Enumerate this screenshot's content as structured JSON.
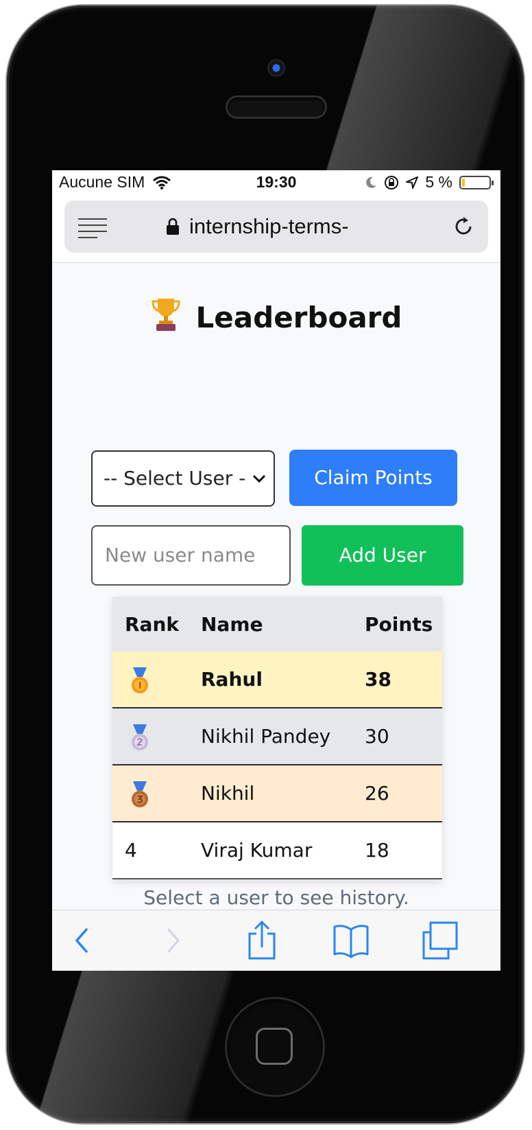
{
  "statusbar": {
    "carrier": "Aucune SIM",
    "time": "19:30",
    "battery": "5 %",
    "battery_level": 0.05
  },
  "browser": {
    "url": "internship-terms-"
  },
  "page": {
    "title": "Leaderboard",
    "select_user": {
      "selected": "-- Select User -"
    },
    "claim_button": "Claim Points",
    "new_user_input": {
      "placeholder": "New user name",
      "value": ""
    },
    "add_button": "Add User",
    "table": {
      "headers": [
        "Rank",
        "Name",
        "Points"
      ],
      "rows": [
        {
          "rank": "",
          "medal": "gold-medal-icon",
          "name": "Rahul",
          "points": "38",
          "bg": "#fff3c2",
          "bold": true
        },
        {
          "rank": "",
          "medal": "silver-medal-icon",
          "name": "Nikhil Pandey",
          "points": "30",
          "bg": "#e6e7ea",
          "bold": false
        },
        {
          "rank": "",
          "medal": "bronze-medal-icon",
          "name": "Nikhil",
          "points": "26",
          "bg": "#feebd0",
          "bold": false
        },
        {
          "rank": "4",
          "medal": "",
          "name": "Viraj Kumar",
          "points": "18",
          "bg": "#ffffff",
          "bold": false
        }
      ]
    },
    "history_hint": "Select a user to see history."
  },
  "colors": {
    "claim": "#2d7ef8",
    "add": "#11c058",
    "ios_blue": "#2a86ea",
    "gold_row": "#fff3c2",
    "silver_row": "#e6e7ea",
    "bronze_row": "#feebd0"
  }
}
